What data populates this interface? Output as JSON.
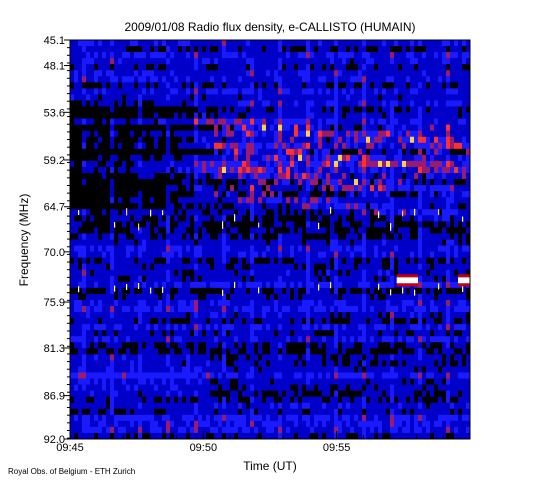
{
  "chart_data": {
    "type": "heatmap",
    "title": "2009/01/08  Radio flux density, e-CALLISTO (HUMAIN)",
    "xlabel": "Time (UT)",
    "ylabel": "Frequency (MHz)",
    "credit": "Royal Obs. of Belgium - ETH Zurich",
    "x_ticks": [
      "09:45",
      "09:50",
      "09:55"
    ],
    "y_ticks": [
      "45.1",
      "48.1",
      "53.6",
      "59.2",
      "64.7",
      "70.0",
      "75.9",
      "81.3",
      "86.9",
      "92.0"
    ],
    "y_axis_inverted": true,
    "colormap": [
      "#000000",
      "#0000c8",
      "#1a1aff",
      "#9a1a6e",
      "#ff3030",
      "#ffd040",
      "#ffffff"
    ],
    "features": [
      {
        "label": "drifting emission lanes",
        "freq_range_mhz": [
          48.1,
          62.0
        ],
        "time": "09:45-10:00"
      },
      {
        "label": "narrowband interference",
        "freq_mhz": 73.5,
        "time": "09:57-09:58"
      },
      {
        "label": "narrowband interference",
        "freq_mhz": 73.5,
        "time": "09:59-10:00"
      }
    ]
  }
}
